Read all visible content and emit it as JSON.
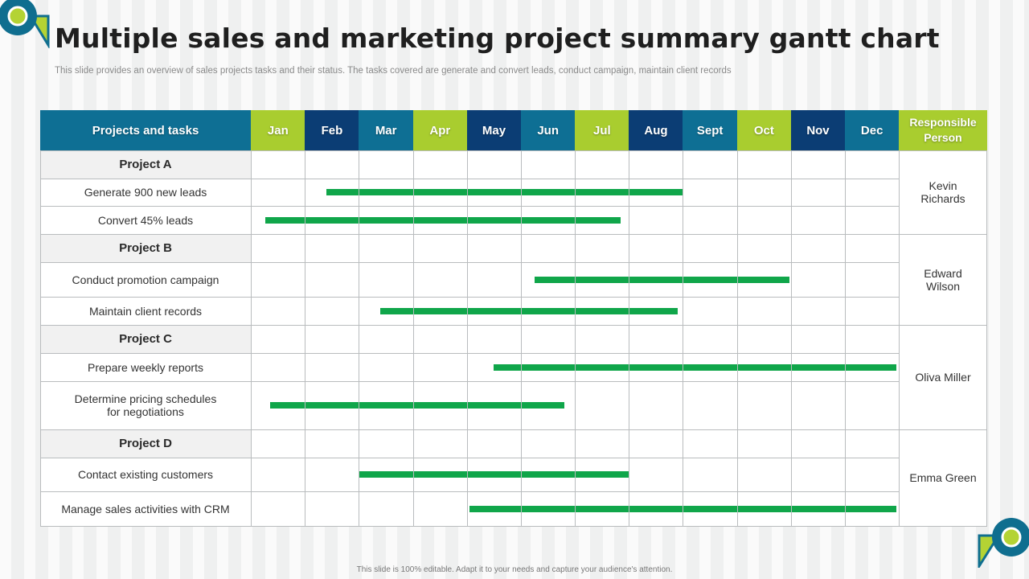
{
  "title": "Multiple sales and marketing project summary gantt chart",
  "subtitle": "This slide provides an overview of sales projects tasks and their status. The tasks covered are generate and convert leads, conduct campaign, maintain client records",
  "footer": "This slide is 100% editable. Adapt it to your needs and capture your audience's attention.",
  "colors": {
    "teal": "#0e6f94",
    "navy": "#0b3d74",
    "lime": "#a9cd2f",
    "bar_green": "#10a64a",
    "logo_teal": "#0f6e8f",
    "logo_lime": "#b4d334"
  },
  "chart_data": {
    "type": "gantt",
    "headers": {
      "tasks": "Projects and tasks",
      "responsible": "Responsible Person"
    },
    "months": [
      {
        "label": "Jan",
        "color": "#a9cd2f"
      },
      {
        "label": "Feb",
        "color": "#0b3d74"
      },
      {
        "label": "Mar",
        "color": "#0e6f94"
      },
      {
        "label": "Apr",
        "color": "#a9cd2f"
      },
      {
        "label": "May",
        "color": "#0b3d74"
      },
      {
        "label": "Jun",
        "color": "#0e6f94"
      },
      {
        "label": "Jul",
        "color": "#a9cd2f"
      },
      {
        "label": "Aug",
        "color": "#0b3d74"
      },
      {
        "label": "Sept",
        "color": "#0e6f94"
      },
      {
        "label": "Oct",
        "color": "#a9cd2f"
      },
      {
        "label": "Nov",
        "color": "#0b3d74"
      },
      {
        "label": "Dec",
        "color": "#0e6f94"
      }
    ],
    "projects": [
      {
        "name": "Project A",
        "person": "Kevin\nRichards",
        "tasks": [
          {
            "label": "Generate 900 new leads",
            "start": 1.4,
            "end": 8.0
          },
          {
            "label": "Convert 45% leads",
            "start": 0.27,
            "end": 6.85
          }
        ]
      },
      {
        "name": "Project B",
        "person": "Edward\nWilson",
        "tasks": [
          {
            "label": "Conduct promotion campaign",
            "start": 5.25,
            "end": 9.98
          },
          {
            "label": "Maintain client records",
            "start": 2.4,
            "end": 7.9
          }
        ]
      },
      {
        "name": "Project C",
        "person": "Oliva Miller",
        "tasks": [
          {
            "label": "Prepare weekly reports",
            "start": 4.5,
            "end": 11.95
          },
          {
            "label": "Determine pricing schedules\nfor negotiations",
            "start": 0.35,
            "end": 5.8
          }
        ]
      },
      {
        "name": "Project D",
        "person": "Emma Green",
        "tasks": [
          {
            "label": "Contact existing customers",
            "start": 2.0,
            "end": 7.0
          },
          {
            "label": "Manage sales activities with CRM",
            "start": 4.05,
            "end": 11.95
          }
        ]
      }
    ]
  }
}
